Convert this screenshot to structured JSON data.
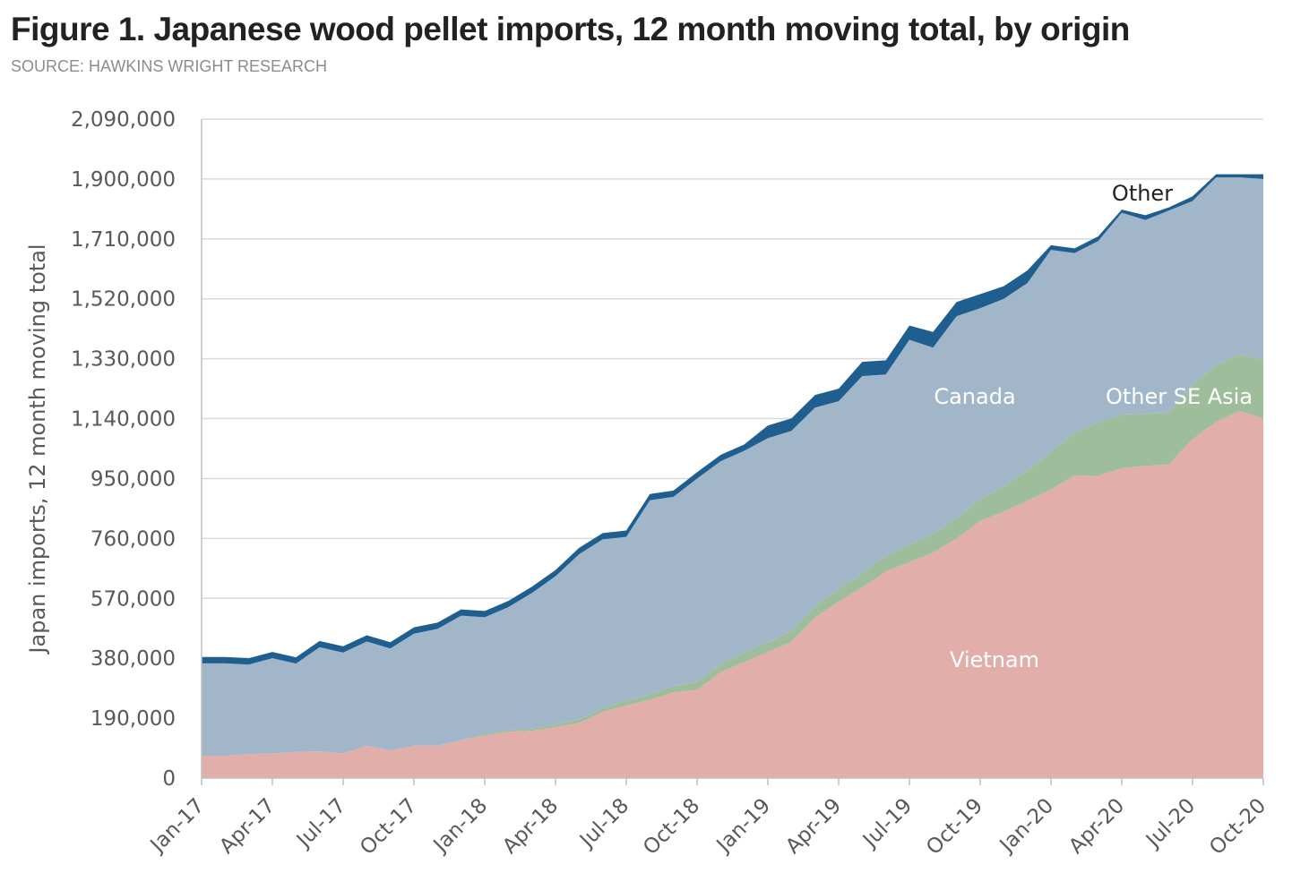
{
  "title": "Figure 1. Japanese wood pellet imports, 12 month moving total, by origin",
  "source": "SOURCE: HAWKINS WRIGHT RESEARCH",
  "chart_data": {
    "type": "area",
    "stacked": true,
    "title": "Figure 1. Japanese wood pellet imports, 12 month moving total, by origin",
    "xlabel": "",
    "ylabel": "Japan imports, 12 month moving total",
    "ylim": [
      0,
      2090000
    ],
    "yticks": [
      0,
      190000,
      380000,
      570000,
      760000,
      950000,
      1140000,
      1330000,
      1520000,
      1710000,
      1900000,
      2090000
    ],
    "ytick_labels": [
      "0",
      "190,000",
      "380,000",
      "570,000",
      "760,000",
      "950,000",
      "1,140,000",
      "1,330,000",
      "1,520,000",
      "1,710,000",
      "1,900,000",
      "2,090,000"
    ],
    "xtick_labels": [
      "Jan-17",
      "Apr-17",
      "Jul-17",
      "Oct-17",
      "Jan-18",
      "Apr-18",
      "Jul-18",
      "Oct-18",
      "Jan-19",
      "Apr-19",
      "Jul-19",
      "Oct-19",
      "Jan-20",
      "Apr-20",
      "Jul-20",
      "Oct-20"
    ],
    "grid": true,
    "legend": "none (direct labels)",
    "x": [
      "Jan-17",
      "Feb-17",
      "Mar-17",
      "Apr-17",
      "May-17",
      "Jun-17",
      "Jul-17",
      "Aug-17",
      "Sep-17",
      "Oct-17",
      "Nov-17",
      "Dec-17",
      "Jan-18",
      "Feb-18",
      "Mar-18",
      "Apr-18",
      "May-18",
      "Jun-18",
      "Jul-18",
      "Aug-18",
      "Sep-18",
      "Oct-18",
      "Nov-18",
      "Dec-18",
      "Jan-19",
      "Feb-19",
      "Mar-19",
      "Apr-19",
      "May-19",
      "Jun-19",
      "Jul-19",
      "Aug-19",
      "Sep-19",
      "Oct-19",
      "Nov-19",
      "Dec-19",
      "Jan-20",
      "Feb-20",
      "Mar-20",
      "Apr-20",
      "May-20",
      "Jun-20",
      "Jul-20",
      "Aug-20",
      "Sep-20",
      "Oct-20"
    ],
    "series": [
      {
        "name": "Vietnam",
        "color": "#e2aeaa",
        "values": [
          71000,
          71000,
          76000,
          78000,
          83000,
          85000,
          78000,
          103000,
          87000,
          103000,
          103000,
          120000,
          135000,
          147000,
          150000,
          162000,
          175000,
          210000,
          230000,
          248000,
          272000,
          280000,
          335000,
          368000,
          400000,
          432000,
          510000,
          560000,
          605000,
          655000,
          685000,
          715000,
          760000,
          815000,
          845000,
          880000,
          915000,
          960000,
          958000,
          983000,
          990000,
          995000,
          1075000,
          1130000,
          1165000,
          1140000
        ]
      },
      {
        "name": "Other SE Asia",
        "color": "#9ebd9b",
        "values": [
          0,
          0,
          0,
          0,
          0,
          0,
          0,
          0,
          0,
          0,
          0,
          0,
          5000,
          5000,
          7000,
          8000,
          10000,
          12000,
          15000,
          18000,
          20000,
          25000,
          28000,
          30000,
          30000,
          35000,
          35000,
          40000,
          45000,
          50000,
          55000,
          60000,
          65000,
          70000,
          80000,
          95000,
          120000,
          135000,
          170000,
          170000,
          165000,
          165000,
          170000,
          180000,
          180000,
          185000
        ]
      },
      {
        "name": "Canada",
        "color": "#a2b6ca",
        "values": [
          293000,
          293000,
          284000,
          302000,
          280000,
          330000,
          320000,
          330000,
          324000,
          355000,
          370000,
          395000,
          370000,
          390000,
          430000,
          470000,
          525000,
          535000,
          520000,
          615000,
          600000,
          645000,
          642000,
          640000,
          648000,
          634000,
          630000,
          595000,
          625000,
          575000,
          650000,
          590000,
          640000,
          605000,
          595000,
          595000,
          640000,
          570000,
          575000,
          640000,
          615000,
          640000,
          585000,
          595000,
          560000,
          575000
        ]
      },
      {
        "name": "Other",
        "color": "#1f5f8f",
        "values": [
          20000,
          20000,
          20000,
          20000,
          20000,
          20000,
          20000,
          20000,
          20000,
          20000,
          20000,
          20000,
          20000,
          20000,
          20000,
          20000,
          20000,
          20000,
          20000,
          20000,
          20000,
          20000,
          20000,
          20000,
          40000,
          40000,
          40000,
          40000,
          45000,
          45000,
          45000,
          50000,
          45000,
          45000,
          40000,
          40000,
          15000,
          15000,
          15000,
          10000,
          15000,
          10000,
          15000,
          10000,
          10000,
          15000
        ]
      }
    ]
  }
}
